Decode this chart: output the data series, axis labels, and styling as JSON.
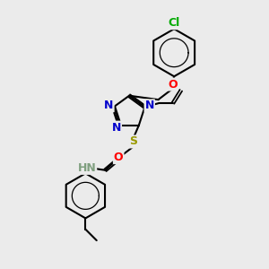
{
  "bg_color": "#ebebeb",
  "atom_colors": {
    "C": "#000000",
    "N": "#0000cc",
    "O": "#ff0000",
    "S": "#999900",
    "Cl": "#00aa00",
    "H": "#7f9f7f"
  },
  "bond_color": "#000000",
  "bond_width": 1.5,
  "font_size_atom": 8.5
}
